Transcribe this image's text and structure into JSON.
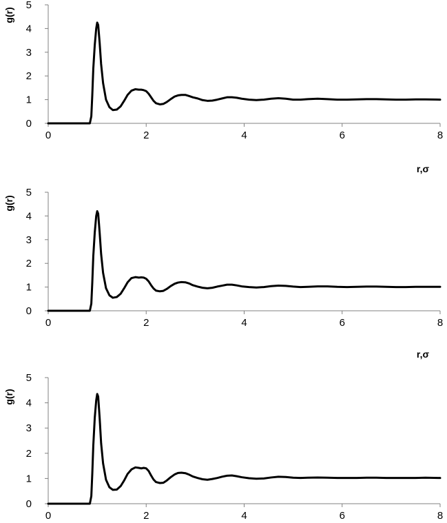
{
  "colors": {
    "line": "#000000",
    "axis": "#808080",
    "background": "#ffffff"
  },
  "chart_data": [
    {
      "type": "line",
      "title": "",
      "xlabel": "r,σ",
      "ylabel": "g(r)",
      "xlim": [
        0,
        8
      ],
      "ylim": [
        0,
        5
      ],
      "xticks": [
        "0",
        "2",
        "4",
        "6",
        "8"
      ],
      "yticks": [
        "0",
        "1",
        "2",
        "3",
        "4",
        "5"
      ],
      "grid": false,
      "legend": "none",
      "series": [
        {
          "x": [
            0,
            0.85,
            0.88,
            0.9,
            0.92,
            0.95,
            0.98,
            1.0,
            1.02,
            1.05,
            1.08,
            1.12,
            1.18,
            1.25,
            1.32,
            1.4,
            1.48,
            1.55,
            1.62,
            1.7,
            1.78,
            1.85,
            1.9,
            1.95,
            2.0,
            2.05,
            2.1,
            2.15,
            2.2,
            2.28,
            2.35,
            2.42,
            2.5,
            2.58,
            2.65,
            2.72,
            2.8,
            2.88,
            2.95,
            3.05,
            3.15,
            3.25,
            3.35,
            3.45,
            3.55,
            3.65,
            3.75,
            3.85,
            3.95,
            4.1,
            4.25,
            4.4,
            4.55,
            4.7,
            4.85,
            5.0,
            5.15,
            5.3,
            5.5,
            5.7,
            5.9,
            6.1,
            6.3,
            6.5,
            6.7,
            6.9,
            7.1,
            7.3,
            7.5,
            7.7,
            8.0
          ],
          "y": [
            0,
            0,
            0.3,
            1.2,
            2.3,
            3.3,
            4.0,
            4.25,
            4.15,
            3.4,
            2.5,
            1.7,
            1.0,
            0.68,
            0.56,
            0.58,
            0.72,
            0.95,
            1.2,
            1.38,
            1.44,
            1.42,
            1.42,
            1.4,
            1.36,
            1.25,
            1.1,
            0.95,
            0.85,
            0.8,
            0.82,
            0.9,
            1.02,
            1.13,
            1.18,
            1.2,
            1.2,
            1.15,
            1.1,
            1.05,
            0.98,
            0.95,
            0.96,
            1.0,
            1.05,
            1.1,
            1.1,
            1.08,
            1.04,
            1.0,
            0.98,
            1.0,
            1.04,
            1.06,
            1.04,
            1.0,
            1.0,
            1.02,
            1.04,
            1.02,
            1.0,
            1.0,
            1.01,
            1.02,
            1.02,
            1.01,
            1.0,
            1.0,
            1.01,
            1.01,
            1.0
          ]
        }
      ]
    },
    {
      "type": "line",
      "title": "",
      "xlabel": "r,σ",
      "ylabel": "g(r)",
      "xlim": [
        0,
        8
      ],
      "ylim": [
        0,
        5
      ],
      "xticks": [
        "0",
        "2",
        "4",
        "6",
        "8"
      ],
      "yticks": [
        "0",
        "1",
        "2",
        "3",
        "4",
        "5"
      ],
      "grid": false,
      "legend": "none",
      "series": [
        {
          "x": [
            0,
            0.85,
            0.88,
            0.9,
            0.92,
            0.95,
            0.98,
            1.0,
            1.02,
            1.05,
            1.08,
            1.12,
            1.18,
            1.25,
            1.32,
            1.4,
            1.48,
            1.55,
            1.62,
            1.7,
            1.78,
            1.85,
            1.9,
            1.95,
            2.0,
            2.05,
            2.1,
            2.15,
            2.2,
            2.28,
            2.35,
            2.42,
            2.5,
            2.58,
            2.65,
            2.72,
            2.8,
            2.88,
            2.95,
            3.05,
            3.15,
            3.25,
            3.35,
            3.45,
            3.55,
            3.65,
            3.75,
            3.85,
            3.95,
            4.1,
            4.25,
            4.4,
            4.55,
            4.7,
            4.85,
            5.0,
            5.15,
            5.3,
            5.5,
            5.7,
            5.9,
            6.1,
            6.3,
            6.5,
            6.7,
            6.9,
            7.1,
            7.3,
            7.5,
            7.7,
            8.0
          ],
          "y": [
            0,
            0,
            0.3,
            1.2,
            2.3,
            3.3,
            4.0,
            4.2,
            4.1,
            3.3,
            2.4,
            1.6,
            0.95,
            0.65,
            0.55,
            0.58,
            0.72,
            0.95,
            1.2,
            1.38,
            1.42,
            1.4,
            1.41,
            1.4,
            1.35,
            1.24,
            1.08,
            0.94,
            0.85,
            0.82,
            0.84,
            0.92,
            1.04,
            1.14,
            1.19,
            1.21,
            1.2,
            1.15,
            1.08,
            1.02,
            0.97,
            0.95,
            0.97,
            1.02,
            1.06,
            1.1,
            1.1,
            1.07,
            1.03,
            1.0,
            0.98,
            1.0,
            1.04,
            1.06,
            1.05,
            1.02,
            1.0,
            1.01,
            1.03,
            1.03,
            1.01,
            1.0,
            1.01,
            1.02,
            1.02,
            1.01,
            1.0,
            1.0,
            1.01,
            1.01,
            1.01
          ]
        }
      ]
    },
    {
      "type": "line",
      "title": "",
      "xlabel": "",
      "ylabel": "g(r)",
      "xlim": [
        0,
        8
      ],
      "ylim": [
        0,
        5
      ],
      "xticks": [
        "0",
        "2",
        "4",
        "6",
        "8"
      ],
      "yticks": [
        "0",
        "1",
        "2",
        "3",
        "4",
        "5"
      ],
      "grid": false,
      "legend": "none",
      "series": [
        {
          "x": [
            0,
            0.85,
            0.88,
            0.9,
            0.92,
            0.95,
            0.98,
            1.0,
            1.02,
            1.05,
            1.08,
            1.12,
            1.18,
            1.25,
            1.32,
            1.4,
            1.48,
            1.55,
            1.62,
            1.7,
            1.78,
            1.85,
            1.9,
            1.95,
            2.0,
            2.05,
            2.1,
            2.15,
            2.2,
            2.28,
            2.35,
            2.42,
            2.5,
            2.58,
            2.65,
            2.72,
            2.8,
            2.88,
            2.95,
            3.05,
            3.15,
            3.25,
            3.35,
            3.45,
            3.55,
            3.65,
            3.75,
            3.85,
            3.95,
            4.1,
            4.25,
            4.4,
            4.55,
            4.7,
            4.85,
            5.0,
            5.15,
            5.3,
            5.5,
            5.7,
            5.9,
            6.1,
            6.3,
            6.5,
            6.7,
            6.9,
            7.1,
            7.3,
            7.5,
            7.7,
            8.0
          ],
          "y": [
            0,
            0,
            0.3,
            1.2,
            2.3,
            3.4,
            4.1,
            4.35,
            4.25,
            3.4,
            2.4,
            1.6,
            0.95,
            0.65,
            0.55,
            0.56,
            0.7,
            0.92,
            1.18,
            1.36,
            1.44,
            1.42,
            1.4,
            1.42,
            1.4,
            1.3,
            1.12,
            0.96,
            0.86,
            0.82,
            0.83,
            0.92,
            1.05,
            1.16,
            1.22,
            1.23,
            1.21,
            1.15,
            1.08,
            1.02,
            0.97,
            0.95,
            0.98,
            1.02,
            1.07,
            1.11,
            1.12,
            1.09,
            1.05,
            1.01,
            0.99,
            1.0,
            1.04,
            1.07,
            1.06,
            1.03,
            1.02,
            1.03,
            1.04,
            1.03,
            1.02,
            1.02,
            1.02,
            1.03,
            1.03,
            1.02,
            1.02,
            1.02,
            1.02,
            1.03,
            1.02
          ]
        }
      ]
    }
  ]
}
